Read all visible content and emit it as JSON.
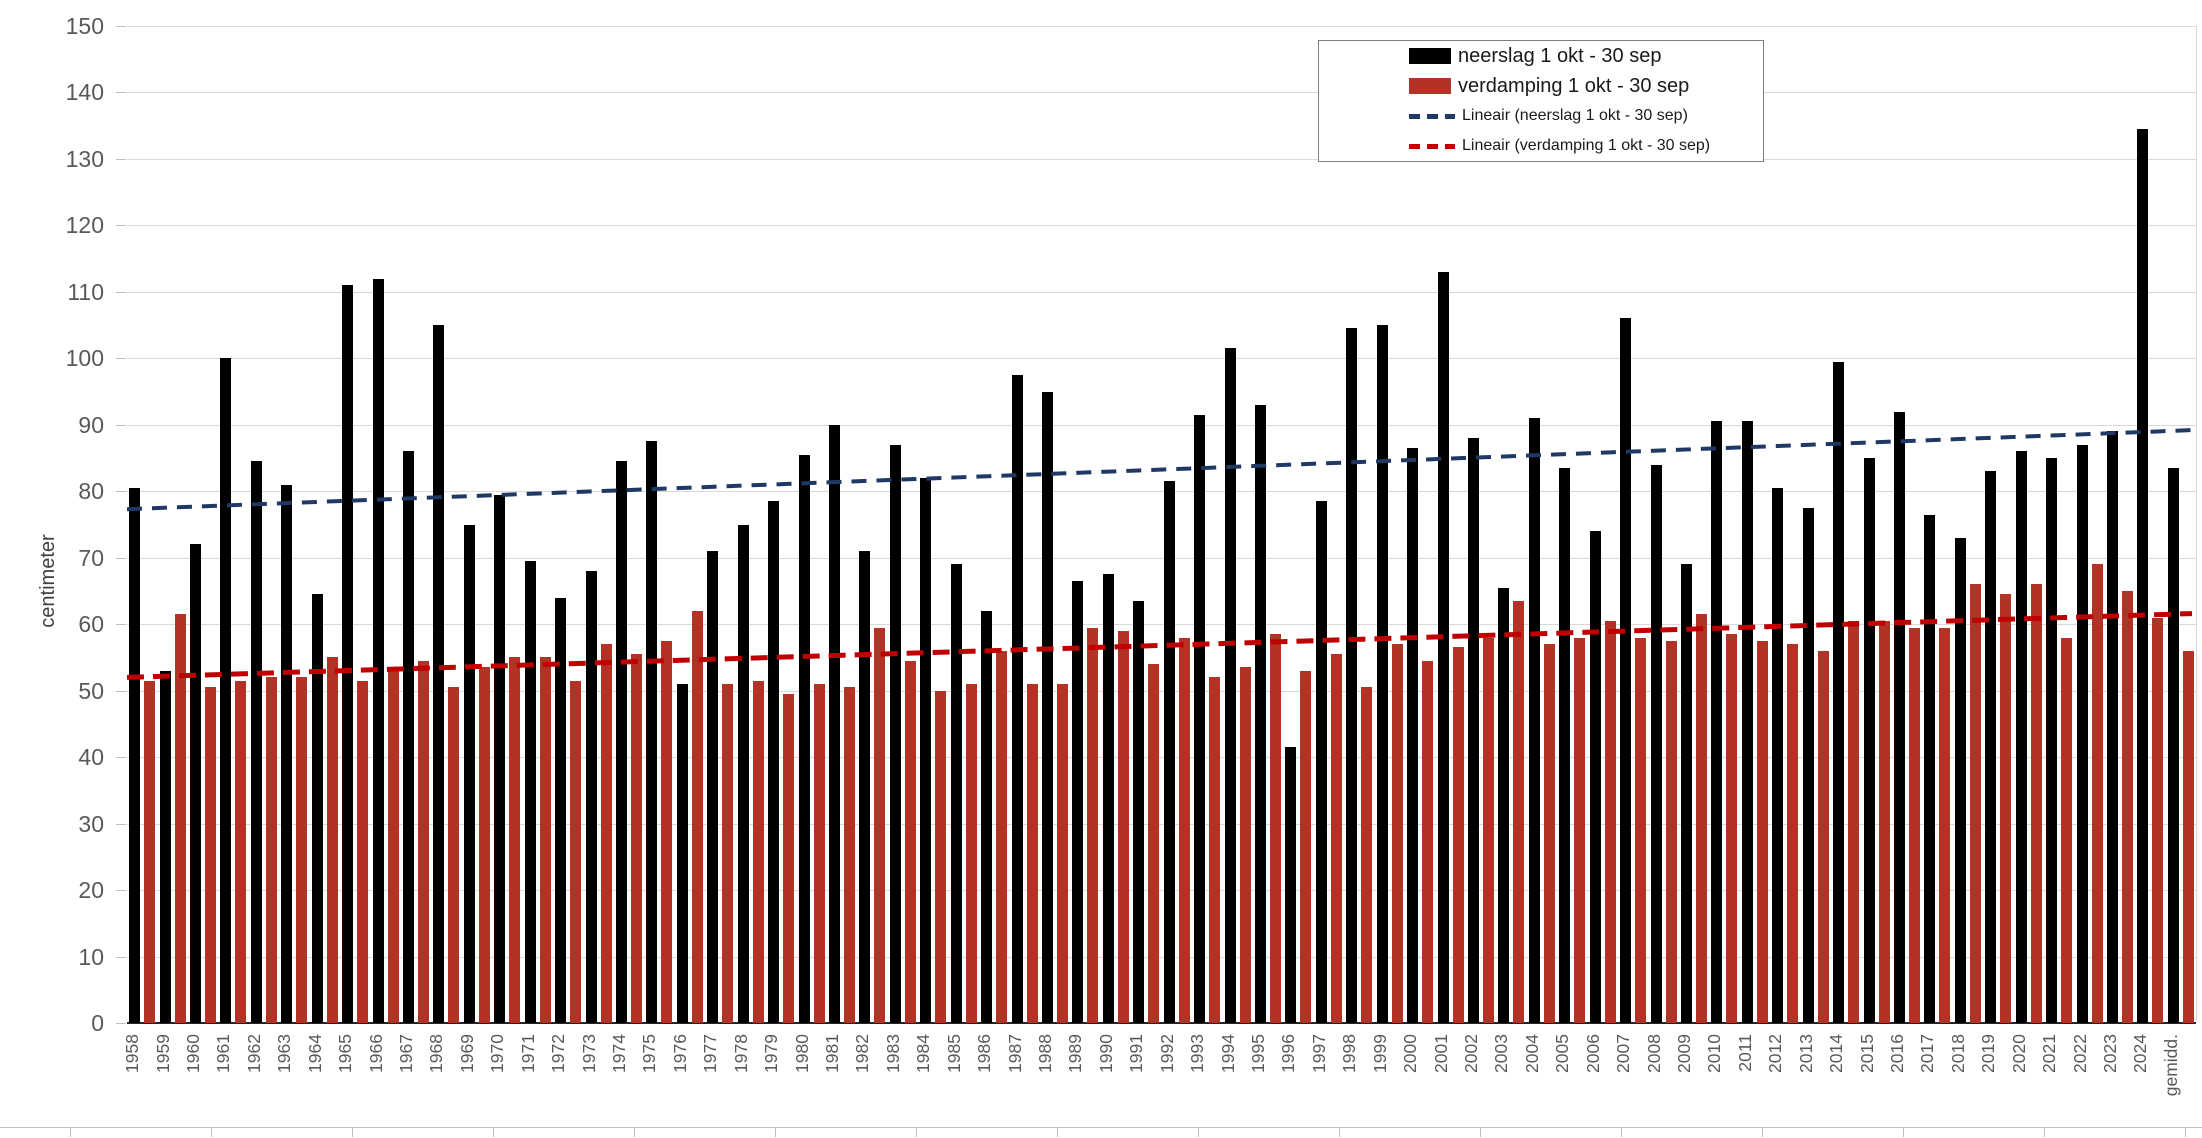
{
  "chart_data": {
    "type": "bar",
    "title": "",
    "ylabel": "centimeter",
    "xlabel": "",
    "ylim": [
      0,
      150
    ],
    "ytick_step": 10,
    "grid": true,
    "legend_position": "top-right",
    "categories": [
      "1958",
      "1959",
      "1960",
      "1961",
      "1962",
      "1963",
      "1964",
      "1965",
      "1966",
      "1967",
      "1968",
      "1969",
      "1970",
      "1971",
      "1972",
      "1973",
      "1974",
      "1975",
      "1976",
      "1977",
      "1978",
      "1979",
      "1980",
      "1981",
      "1982",
      "1983",
      "1984",
      "1985",
      "1986",
      "1987",
      "1988",
      "1989",
      "1990",
      "1991",
      "1992",
      "1993",
      "1994",
      "1995",
      "1996",
      "1997",
      "1998",
      "1999",
      "2000",
      "2001",
      "2002",
      "2003",
      "2004",
      "2005",
      "2006",
      "2007",
      "2008",
      "2009",
      "2010",
      "2011",
      "2012",
      "2013",
      "2014",
      "2015",
      "2016",
      "2017",
      "2018",
      "2019",
      "2020",
      "2021",
      "2022",
      "2023",
      "2024",
      "gemidd."
    ],
    "series": [
      {
        "name": "neerslag 1 okt - 30 sep",
        "color": "#000000",
        "values": [
          80.5,
          53,
          72,
          100,
          84.5,
          81,
          64.5,
          111,
          112,
          86,
          105,
          75,
          79.5,
          69.5,
          64,
          68,
          84.5,
          87.5,
          51,
          71,
          75,
          78.5,
          85.5,
          90,
          71,
          87,
          82,
          69,
          62,
          97.5,
          95,
          66.5,
          67.5,
          63.5,
          81.5,
          91.5,
          101.5,
          93,
          41.5,
          78.5,
          104.5,
          105,
          86.5,
          113,
          88,
          65.5,
          91,
          83.5,
          74,
          106,
          84,
          69,
          90.5,
          90.5,
          80.5,
          77.5,
          99.5,
          85,
          92,
          76.5,
          73,
          83,
          86,
          85,
          87,
          89,
          134.5,
          83.5
        ]
      },
      {
        "name": "verdamping 1 okt - 30 sep",
        "color": "#B23226",
        "values": [
          51.5,
          61.5,
          50.5,
          51.5,
          52,
          52,
          55,
          51.5,
          53,
          54.5,
          50.5,
          53.5,
          55,
          55,
          51.5,
          57,
          55.5,
          57.5,
          62,
          51,
          51.5,
          49.5,
          51,
          50.5,
          59.5,
          54.5,
          50,
          51,
          56,
          51,
          51,
          59.5,
          59,
          54,
          58,
          52,
          53.5,
          58.5,
          53,
          55.5,
          50.5,
          57,
          54.5,
          56.5,
          58,
          63.5,
          57,
          58,
          60.5,
          58,
          57.5,
          61.5,
          58.5,
          57.5,
          57,
          56,
          60.5,
          60.5,
          59.5,
          59.5,
          66,
          64.5,
          66,
          58,
          69,
          65,
          61,
          56
        ]
      }
    ],
    "trendlines": [
      {
        "name": "Lineair (neerslag 1 okt - 30 sep)",
        "color": "#1F3864",
        "start_value": 77.3,
        "end_value": 89.2
      },
      {
        "name": "Lineair (verdamping 1 okt - 30 sep)",
        "color": "#C00000",
        "start_value": 52.0,
        "end_value": 61.6
      }
    ],
    "legend": {
      "items": [
        {
          "label": "neerslag 1 okt - 30 sep",
          "swatch": "bar",
          "color": "#000000"
        },
        {
          "label": "verdamping 1 okt - 30 sep",
          "swatch": "bar",
          "color": "#B23226"
        },
        {
          "label": "Lineair (neerslag 1 okt - 30 sep)",
          "swatch": "dash",
          "color": "#1F3864"
        },
        {
          "label": "Lineair (verdamping 1 okt - 30 sep)",
          "swatch": "dash",
          "color": "#C00000"
        }
      ]
    }
  },
  "style_colors": {
    "gridline": "#D9D9D9",
    "axis_text": "#595959",
    "zero_axis": "#262626",
    "legend_border": "#7F7F7F"
  }
}
